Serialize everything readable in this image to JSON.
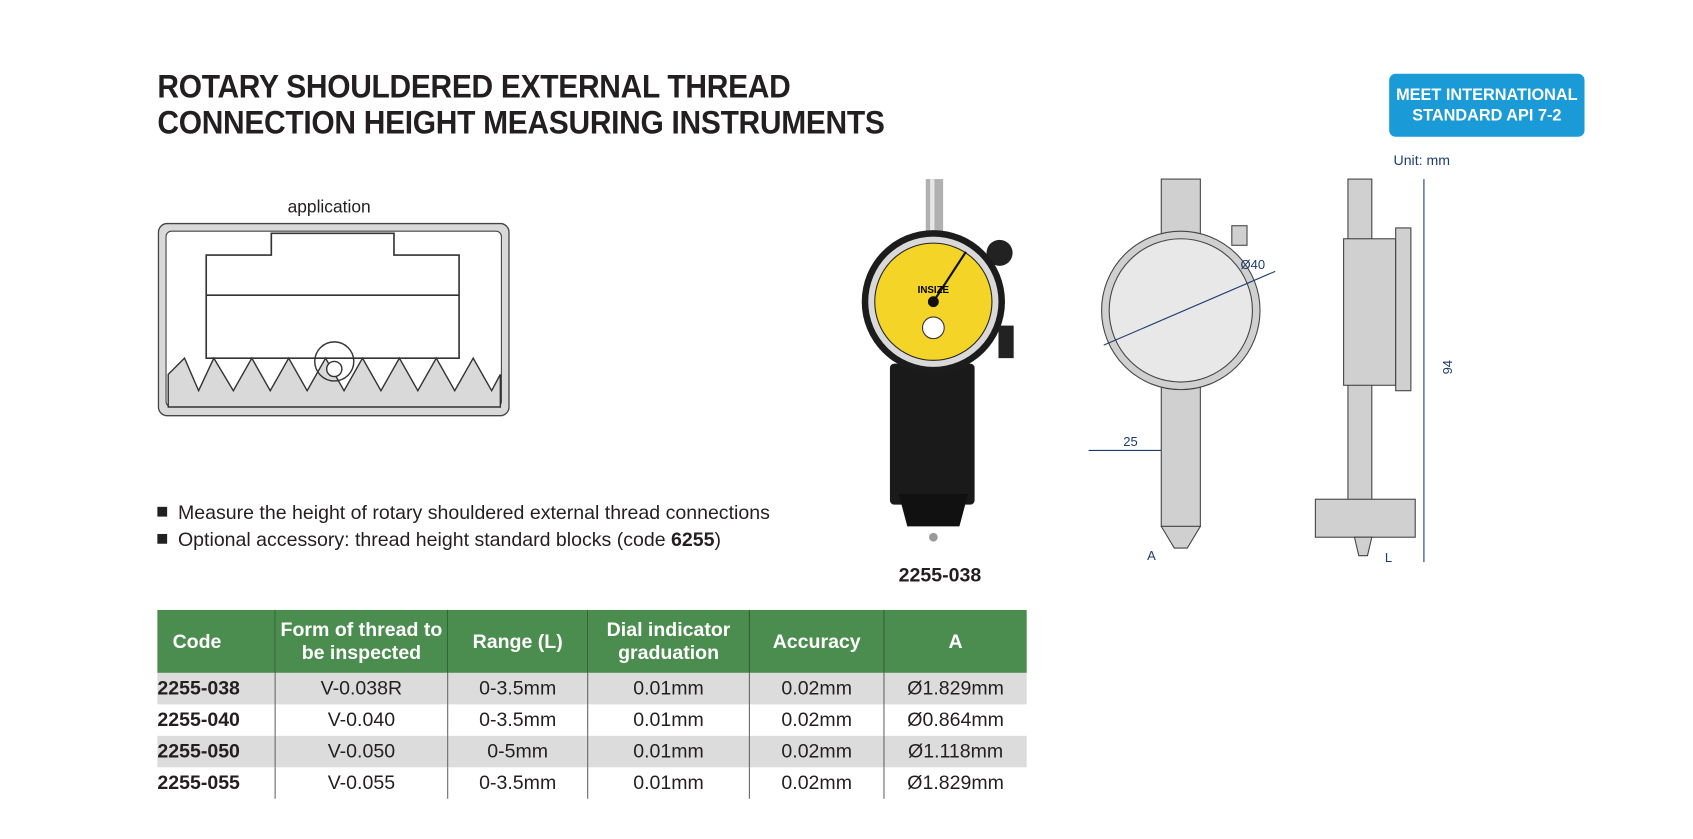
{
  "header": {
    "title_line1": "ROTARY SHOULDERED EXTERNAL THREAD",
    "title_line2": "CONNECTION HEIGHT MEASURING INSTRUMENTS",
    "badge_line1": "MEET INTERNATIONAL",
    "badge_line2": "STANDARD API 7-2",
    "unit": "Unit: mm"
  },
  "application_label": "application",
  "bullets": [
    "Measure the height of rotary shouldered external thread connections",
    "Optional accessory: thread height standard blocks (code "
  ],
  "bullet2_code": "6255",
  "bullet2_end": ")",
  "product_caption": "2255-038",
  "dimensions": {
    "dial_dia": "Ø40",
    "width": "25",
    "height": "94",
    "a": "A",
    "l": "L"
  },
  "brand_logo": "INSIZE",
  "colors": {
    "table_header": "#4b8d4f",
    "badge": "#1a9ad6",
    "dial_face": "#f3d427"
  },
  "table": {
    "headers": [
      "Code",
      "Form of thread to be inspected",
      "Range (L)",
      "Dial indicator graduation",
      "Accuracy",
      "A"
    ],
    "rows": [
      [
        "2255-038",
        "V-0.038R",
        "0-3.5mm",
        "0.01mm",
        "0.02mm",
        "Ø1.829mm"
      ],
      [
        "2255-040",
        "V-0.040",
        "0-3.5mm",
        "0.01mm",
        "0.02mm",
        "Ø0.864mm"
      ],
      [
        "2255-050",
        "V-0.050",
        "0-5mm",
        "0.01mm",
        "0.02mm",
        "Ø1.118mm"
      ],
      [
        "2255-055",
        "V-0.055",
        "0-3.5mm",
        "0.01mm",
        "0.02mm",
        "Ø1.829mm"
      ]
    ]
  }
}
